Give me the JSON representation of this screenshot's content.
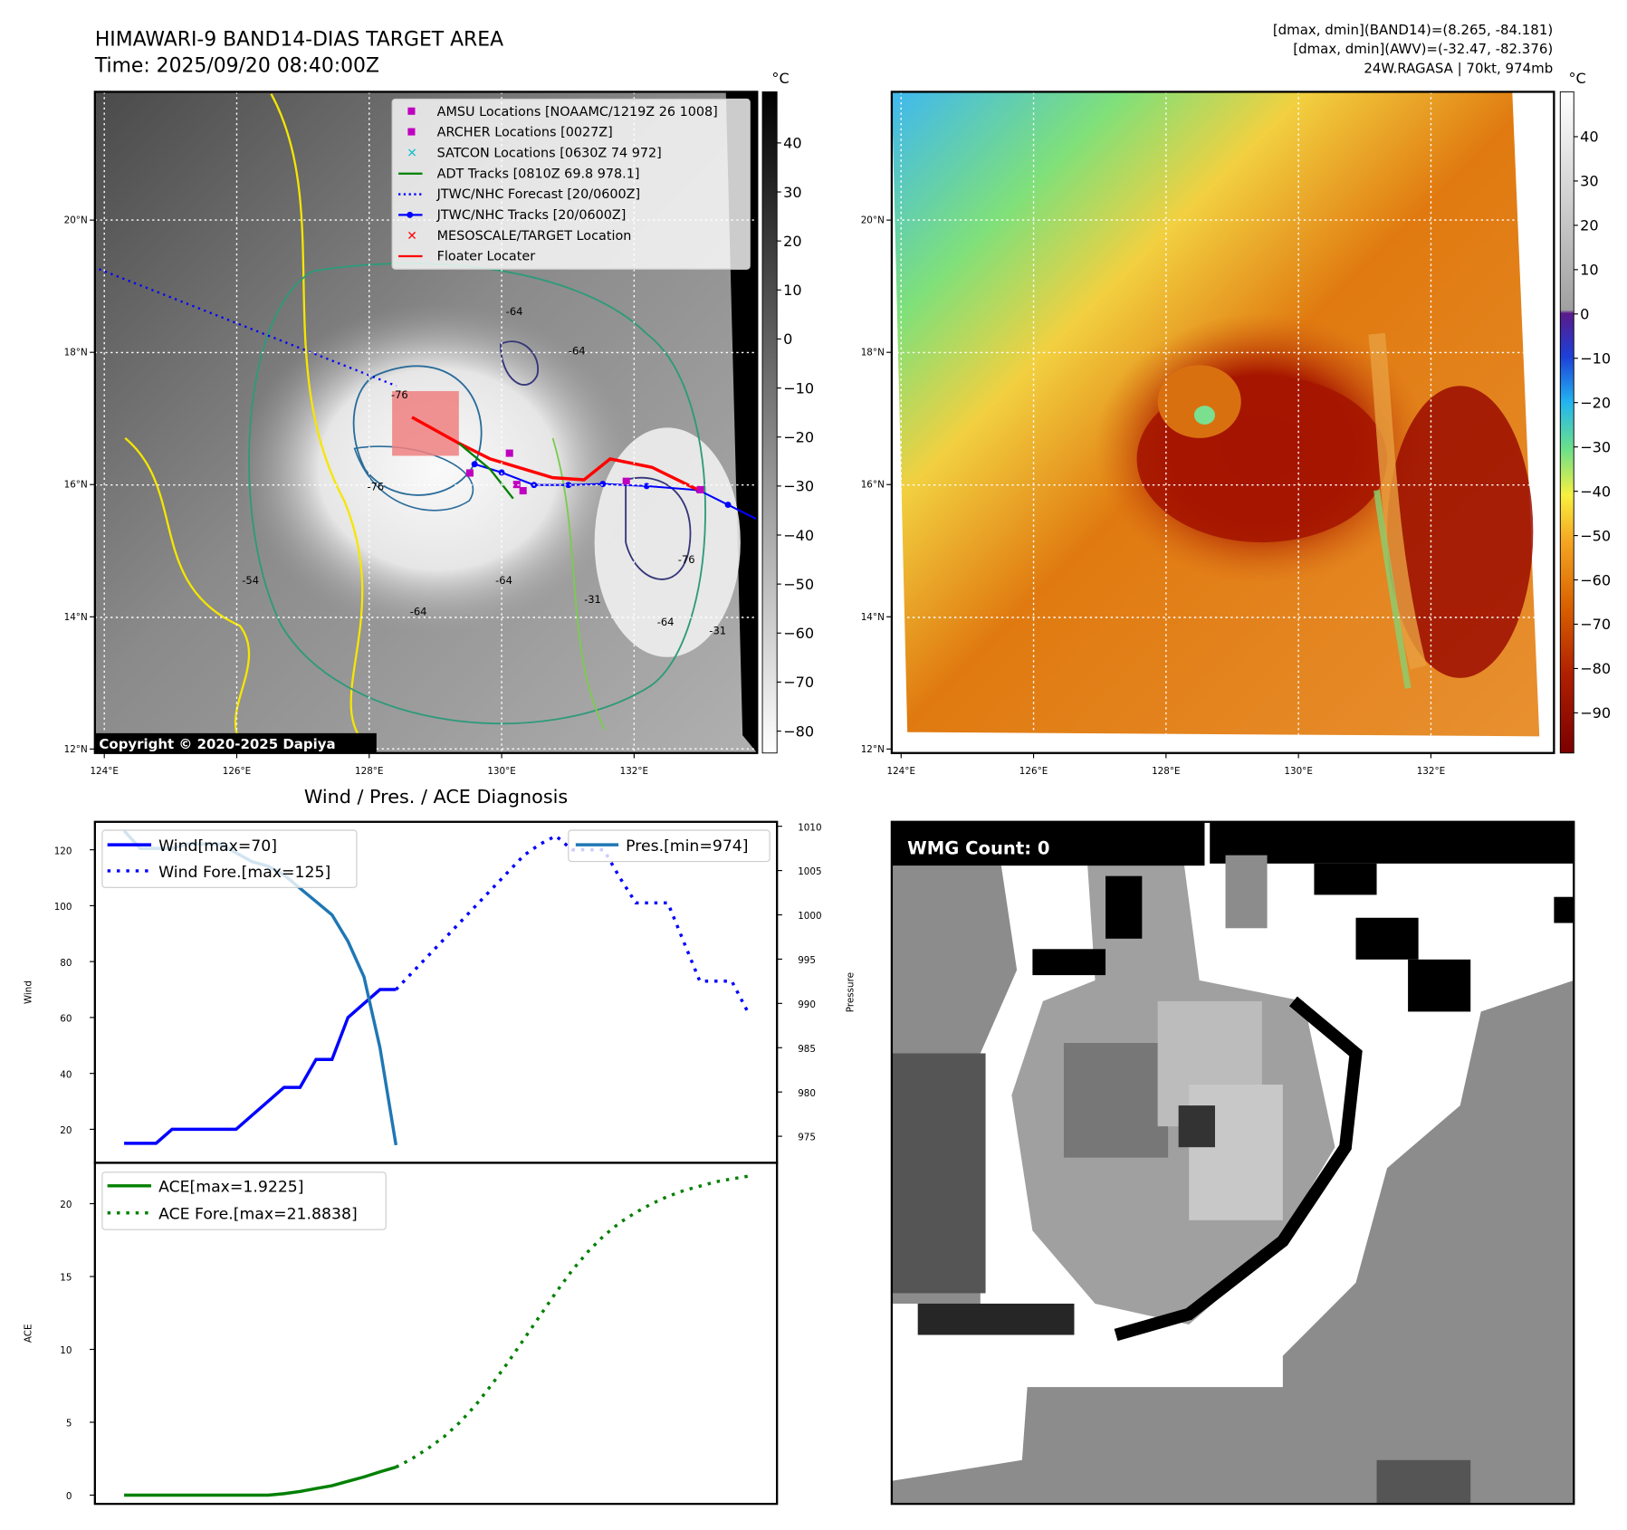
{
  "header": {
    "title_line1": "HIMAWARI-9 BAND14-DIAS TARGET AREA",
    "title_line2": "Time: 2025/09/20 08:40:00Z",
    "info_line1": "[dmax, dmin](BAND14)=(8.265, -84.181)",
    "info_line2": "[dmax, dmin](AWV)=(-32.47, -82.376)",
    "info_line3": "24W.RAGASA | 70kt, 974mb"
  },
  "map": {
    "lon_ticks": [
      "124°E",
      "126°E",
      "128°E",
      "130°E",
      "132°E"
    ],
    "lat_ticks": [
      "20°N",
      "18°N",
      "16°N",
      "14°N",
      "12°N"
    ],
    "copyright": "Copyright © 2020-2025 Dapiya",
    "contour_labels": [
      "-64",
      "-64",
      "-76",
      "-76",
      "-76",
      "-64",
      "-64",
      "-31",
      "-31",
      "-54",
      "-64"
    ],
    "legend": [
      {
        "label": "AMSU Locations [NOAAMC/1219Z 26 1008]",
        "marker": "square",
        "color": "#bf00bf"
      },
      {
        "label": "ARCHER Locations [0027Z]",
        "marker": "square",
        "color": "#bf00bf"
      },
      {
        "label": "SATCON Locations [0630Z 74 972]",
        "marker": "x",
        "color": "#17becf"
      },
      {
        "label": "ADT Tracks [0810Z 69.8 978.1]",
        "marker": "line",
        "color": "#008000"
      },
      {
        "label": "JTWC/NHC Forecast [20/0600Z]",
        "marker": "dotted",
        "color": "#0000ff"
      },
      {
        "label": "JTWC/NHC Tracks [20/0600Z]",
        "marker": "line-dot",
        "color": "#0000ff"
      },
      {
        "label": "MESOSCALE/TARGET Location",
        "marker": "x",
        "color": "#ff0000"
      },
      {
        "label": "Floater Locater",
        "marker": "line",
        "color": "#ff0000"
      }
    ],
    "colorbar1": {
      "unit": "°C",
      "ticks": [
        "40",
        "30",
        "20",
        "10",
        "0",
        "−10",
        "−20",
        "−30",
        "−40",
        "−50",
        "−60",
        "−70",
        "−80"
      ]
    },
    "colorbar2": {
      "unit": "°C",
      "ticks": [
        "40",
        "30",
        "20",
        "10",
        "0",
        "−10",
        "−20",
        "−30",
        "−40",
        "−50",
        "−60",
        "−70",
        "−80",
        "−90"
      ]
    }
  },
  "wmg": {
    "label": "WMG Count: 0"
  },
  "chart_data": [
    {
      "type": "line",
      "title": "Wind / Pres. / ACE Diagnosis",
      "ylabel": "Wind",
      "y2label": "Pressure",
      "ylim": [
        8,
        130
      ],
      "y2lim": [
        972,
        1010.5
      ],
      "yticks": [
        20,
        40,
        60,
        80,
        100,
        120
      ],
      "y2ticks": [
        975,
        980,
        985,
        990,
        995,
        1000,
        1005,
        1010
      ],
      "legend_left": [
        "Wind[max=70]",
        "Wind Fore.[max=125]"
      ],
      "legend_right": [
        "Pres.[min=974]"
      ],
      "series": [
        {
          "name": "Wind[max=70]",
          "color": "#0000ff",
          "style": "solid",
          "axis": "left",
          "x": [
            0,
            1,
            2,
            3,
            4,
            5,
            6,
            7,
            8,
            9,
            10,
            11,
            12,
            13,
            14,
            15,
            16,
            17
          ],
          "values": [
            15,
            15,
            15,
            20,
            20,
            20,
            20,
            20,
            25,
            30,
            35,
            35,
            45,
            45,
            60,
            65,
            70,
            70
          ]
        },
        {
          "name": "Wind Fore.[max=125]",
          "color": "#0000ff",
          "style": "dotted",
          "axis": "left",
          "x": [
            17,
            18,
            19,
            20,
            21,
            22,
            23,
            24,
            25,
            26,
            27,
            28,
            29,
            30,
            31,
            32,
            33,
            34,
            35,
            36,
            37,
            38,
            39
          ],
          "values": [
            70,
            76,
            82,
            88,
            94,
            100,
            106,
            112,
            118,
            122,
            125,
            120,
            120,
            120,
            110,
            101,
            101,
            101,
            87,
            73,
            73,
            73,
            62
          ]
        },
        {
          "name": "Pres.[min=974]",
          "color": "#1f77b4",
          "style": "solid",
          "axis": "right",
          "x": [
            0,
            1,
            2,
            3,
            4,
            5,
            6,
            7,
            8,
            9,
            10,
            11,
            12,
            13,
            14,
            15,
            16,
            17
          ],
          "values": [
            1009.5,
            1007.5,
            1007.5,
            1007.5,
            1008,
            1008,
            1008,
            1007,
            1006,
            1005.5,
            1004.5,
            1003,
            1001.5,
            1000,
            997,
            993,
            985,
            974
          ]
        }
      ]
    },
    {
      "type": "line",
      "ylabel": "ACE",
      "ylim": [
        -0.6,
        22.8
      ],
      "yticks": [
        0,
        5,
        10,
        15,
        20
      ],
      "legend": [
        "ACE[max=1.9225]",
        "ACE Fore.[max=21.8838]"
      ],
      "series": [
        {
          "name": "ACE[max=1.9225]",
          "color": "#008000",
          "style": "solid",
          "x": [
            0,
            1,
            2,
            3,
            4,
            5,
            6,
            7,
            8,
            9,
            10,
            11,
            12,
            13,
            14,
            15,
            16,
            17
          ],
          "values": [
            0,
            0,
            0,
            0,
            0,
            0,
            0,
            0,
            0,
            0,
            0.1,
            0.25,
            0.45,
            0.65,
            0.95,
            1.25,
            1.6,
            1.92
          ]
        },
        {
          "name": "ACE Fore.[max=21.8838]",
          "color": "#008000",
          "style": "dotted",
          "x": [
            17,
            18,
            19,
            20,
            21,
            22,
            23,
            24,
            25,
            26,
            27,
            28,
            29,
            30,
            31,
            32,
            33,
            34,
            35,
            36,
            37,
            38,
            39
          ],
          "values": [
            1.92,
            2.5,
            3.2,
            4.0,
            5.0,
            6.2,
            7.6,
            9.1,
            10.7,
            12.3,
            13.9,
            15.4,
            16.7,
            17.8,
            18.7,
            19.4,
            20.0,
            20.5,
            20.9,
            21.2,
            21.5,
            21.7,
            21.88
          ]
        }
      ]
    }
  ]
}
